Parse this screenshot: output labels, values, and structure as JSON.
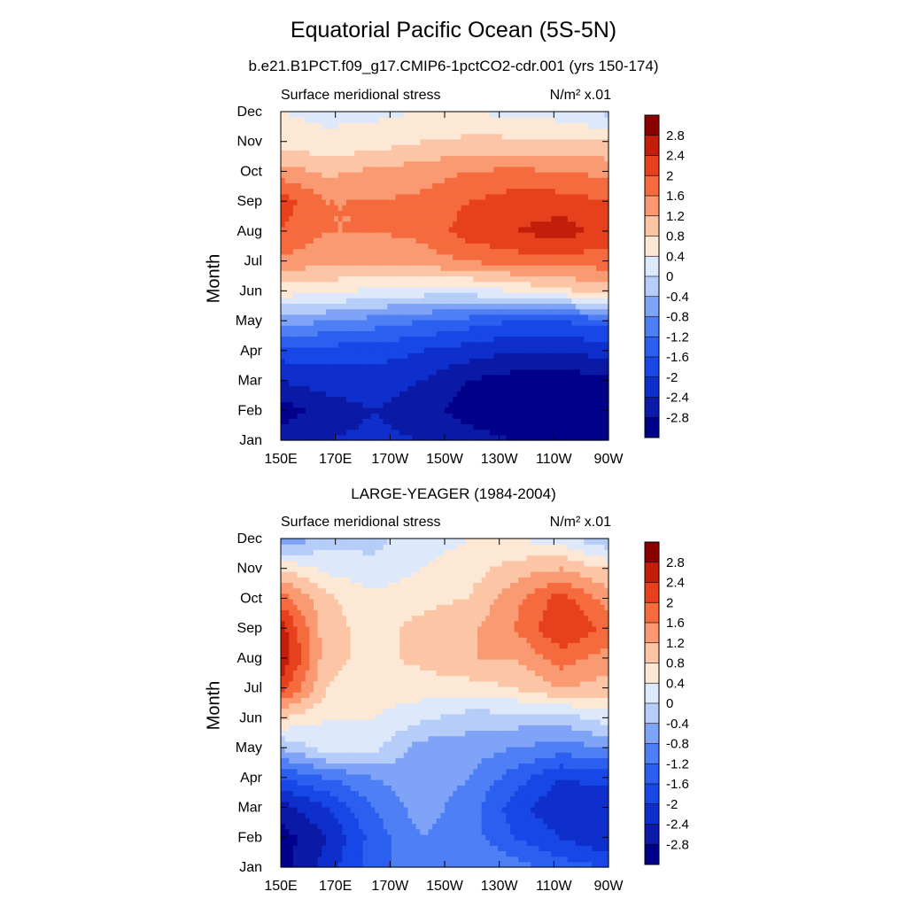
{
  "title": "Equatorial Pacific Ocean (5S-5N)",
  "chart_data": [
    {
      "type": "heatmap",
      "subtitle": "b.e21.B1PCT.f09_g17.CMIP6-1pctCO2-cdr.001 (yrs 150-174)",
      "left_label": "Surface meridional stress",
      "right_label": "N/m² x.01",
      "ylabel": "Month",
      "xlabel": "",
      "x_ticks": [
        "150E",
        "170E",
        "170W",
        "150W",
        "130W",
        "110W",
        "90W"
      ],
      "x_values": [
        150,
        170,
        190,
        210,
        230,
        250,
        270
      ],
      "y_ticks": [
        "Jan",
        "Feb",
        "Mar",
        "Apr",
        "May",
        "Jun",
        "Jul",
        "Aug",
        "Sep",
        "Oct",
        "Nov",
        "Dec"
      ],
      "colorbar": {
        "levels": [
          -2.8,
          -2.4,
          -2,
          -1.6,
          -1.2,
          -0.8,
          -0.4,
          0,
          0.4,
          0.8,
          1.2,
          1.6,
          2,
          2.4,
          2.8
        ],
        "labels": [
          "-2.8",
          "-2.4",
          "-2",
          "-1.6",
          "-1.2",
          "-0.8",
          "-0.4",
          "0",
          "0.4",
          "0.8",
          "1.2",
          "1.6",
          "2",
          "2.4",
          "2.8"
        ]
      },
      "z": [
        [
          -2.6,
          -2.4,
          -2.3,
          -2.4,
          -2.6,
          -2.8,
          -2.9,
          -2.8
        ],
        [
          -3.0,
          -2.6,
          -2.4,
          -2.6,
          -3.0,
          -3.2,
          -3.2,
          -3.1
        ],
        [
          -2.4,
          -2.2,
          -2.2,
          -2.4,
          -2.8,
          -3.0,
          -3.0,
          -3.0
        ],
        [
          -1.8,
          -1.8,
          -1.8,
          -2.0,
          -2.2,
          -2.4,
          -2.4,
          -2.2
        ],
        [
          -0.6,
          -0.8,
          -1.0,
          -1.2,
          -1.4,
          -1.6,
          -1.6,
          -1.4
        ],
        [
          0.6,
          0.5,
          0.3,
          0.2,
          0.2,
          0.4,
          0.7,
          1.0
        ],
        [
          1.5,
          1.3,
          1.3,
          1.4,
          1.6,
          1.8,
          1.8,
          1.8
        ],
        [
          2.0,
          1.6,
          1.6,
          1.7,
          2.2,
          2.4,
          2.6,
          2.2
        ],
        [
          2.2,
          1.6,
          1.6,
          1.7,
          2.0,
          2.2,
          2.2,
          2.0
        ],
        [
          1.4,
          1.1,
          1.3,
          1.4,
          1.6,
          1.7,
          1.6,
          1.5
        ],
        [
          0.6,
          0.5,
          0.6,
          0.8,
          0.9,
          0.9,
          0.9,
          0.8
        ],
        [
          0.4,
          0.3,
          0.3,
          0.4,
          0.4,
          0.3,
          0.2,
          -0.1
        ]
      ],
      "grid": false
    },
    {
      "type": "heatmap",
      "subtitle": "LARGE-YEAGER (1984-2004)",
      "left_label": "Surface meridional stress",
      "right_label": "N/m² x.01",
      "ylabel": "Month",
      "xlabel": "",
      "x_ticks": [
        "150E",
        "170E",
        "170W",
        "150W",
        "130W",
        "110W",
        "90W"
      ],
      "x_values": [
        150,
        170,
        190,
        210,
        230,
        250,
        270
      ],
      "y_ticks": [
        "Jan",
        "Feb",
        "Mar",
        "Apr",
        "May",
        "Jun",
        "Jul",
        "Aug",
        "Sep",
        "Oct",
        "Nov",
        "Dec"
      ],
      "colorbar": {
        "levels": [
          -2.8,
          -2.4,
          -2,
          -1.6,
          -1.2,
          -0.8,
          -0.4,
          0,
          0.4,
          0.8,
          1.2,
          1.6,
          2,
          2.4,
          2.8
        ],
        "labels": [
          "-2.8",
          "-2.4",
          "-2",
          "-1.6",
          "-1.2",
          "-0.8",
          "-0.4",
          "0",
          "0.4",
          "0.8",
          "1.2",
          "1.6",
          "2",
          "2.4",
          "2.8"
        ]
      },
      "z": [
        [
          -3.0,
          -2.2,
          -1.4,
          -0.8,
          -0.8,
          -1.0,
          -1.4,
          -1.6
        ],
        [
          -3.0,
          -2.4,
          -1.4,
          -0.8,
          -1.0,
          -1.6,
          -2.0,
          -2.4
        ],
        [
          -2.6,
          -2.0,
          -1.2,
          -0.6,
          -1.0,
          -1.8,
          -2.4,
          -2.4
        ],
        [
          -1.6,
          -1.2,
          -0.8,
          -0.5,
          -0.8,
          -1.4,
          -2.0,
          -1.8
        ],
        [
          -0.4,
          0.2,
          0.1,
          -0.6,
          -0.6,
          -0.8,
          -1.0,
          -0.8
        ],
        [
          0.8,
          0.4,
          0.4,
          0.1,
          -0.2,
          -0.2,
          -0.2,
          0.2
        ],
        [
          2.2,
          0.8,
          0.6,
          0.6,
          0.6,
          0.8,
          1.2,
          1.0
        ],
        [
          2.8,
          0.9,
          0.7,
          0.9,
          1.2,
          1.2,
          1.8,
          1.4
        ],
        [
          2.6,
          0.9,
          0.7,
          0.9,
          1.1,
          1.6,
          2.4,
          1.9
        ],
        [
          1.8,
          0.9,
          0.5,
          0.7,
          0.8,
          1.5,
          2.2,
          1.4
        ],
        [
          0.8,
          0.3,
          0.1,
          0.4,
          0.6,
          1.0,
          1.2,
          0.8
        ],
        [
          -0.8,
          -0.2,
          -0.1,
          0.2,
          0.4,
          0.4,
          0.2,
          -0.4
        ]
      ],
      "grid": false
    }
  ]
}
